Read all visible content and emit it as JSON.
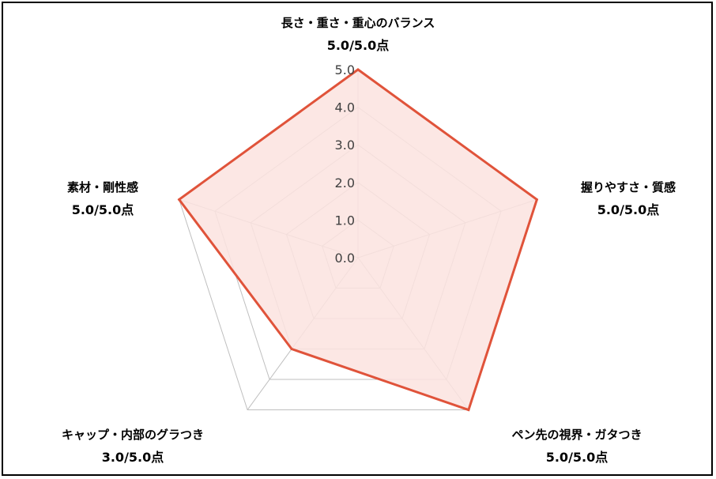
{
  "chart_data": {
    "type": "radar",
    "rmin": 0,
    "rmax": 5,
    "ticks": [
      "0.0",
      "1.0",
      "2.0",
      "3.0",
      "4.0",
      "5.0"
    ],
    "tick_values": [
      0,
      1,
      2,
      3,
      4,
      5
    ],
    "axes": [
      {
        "label": "長さ・重さ・重心のバランス",
        "score_text": "5.0/5.0点",
        "value": 5.0
      },
      {
        "label": "握りやすさ・質感",
        "score_text": "5.0/5.0点",
        "value": 5.0
      },
      {
        "label": "ペン先の視界・ガタつき",
        "score_text": "5.0/5.0点",
        "value": 5.0
      },
      {
        "label": "キャップ・内部のグラつき",
        "score_text": "3.0/5.0点",
        "value": 3.0
      },
      {
        "label": "素材・剛性感",
        "score_text": "5.0/5.0点",
        "value": 5.0
      }
    ],
    "colors": {
      "fill": "#fbe3df",
      "line": "#e0533a",
      "grid": "#bfbfbf"
    }
  }
}
